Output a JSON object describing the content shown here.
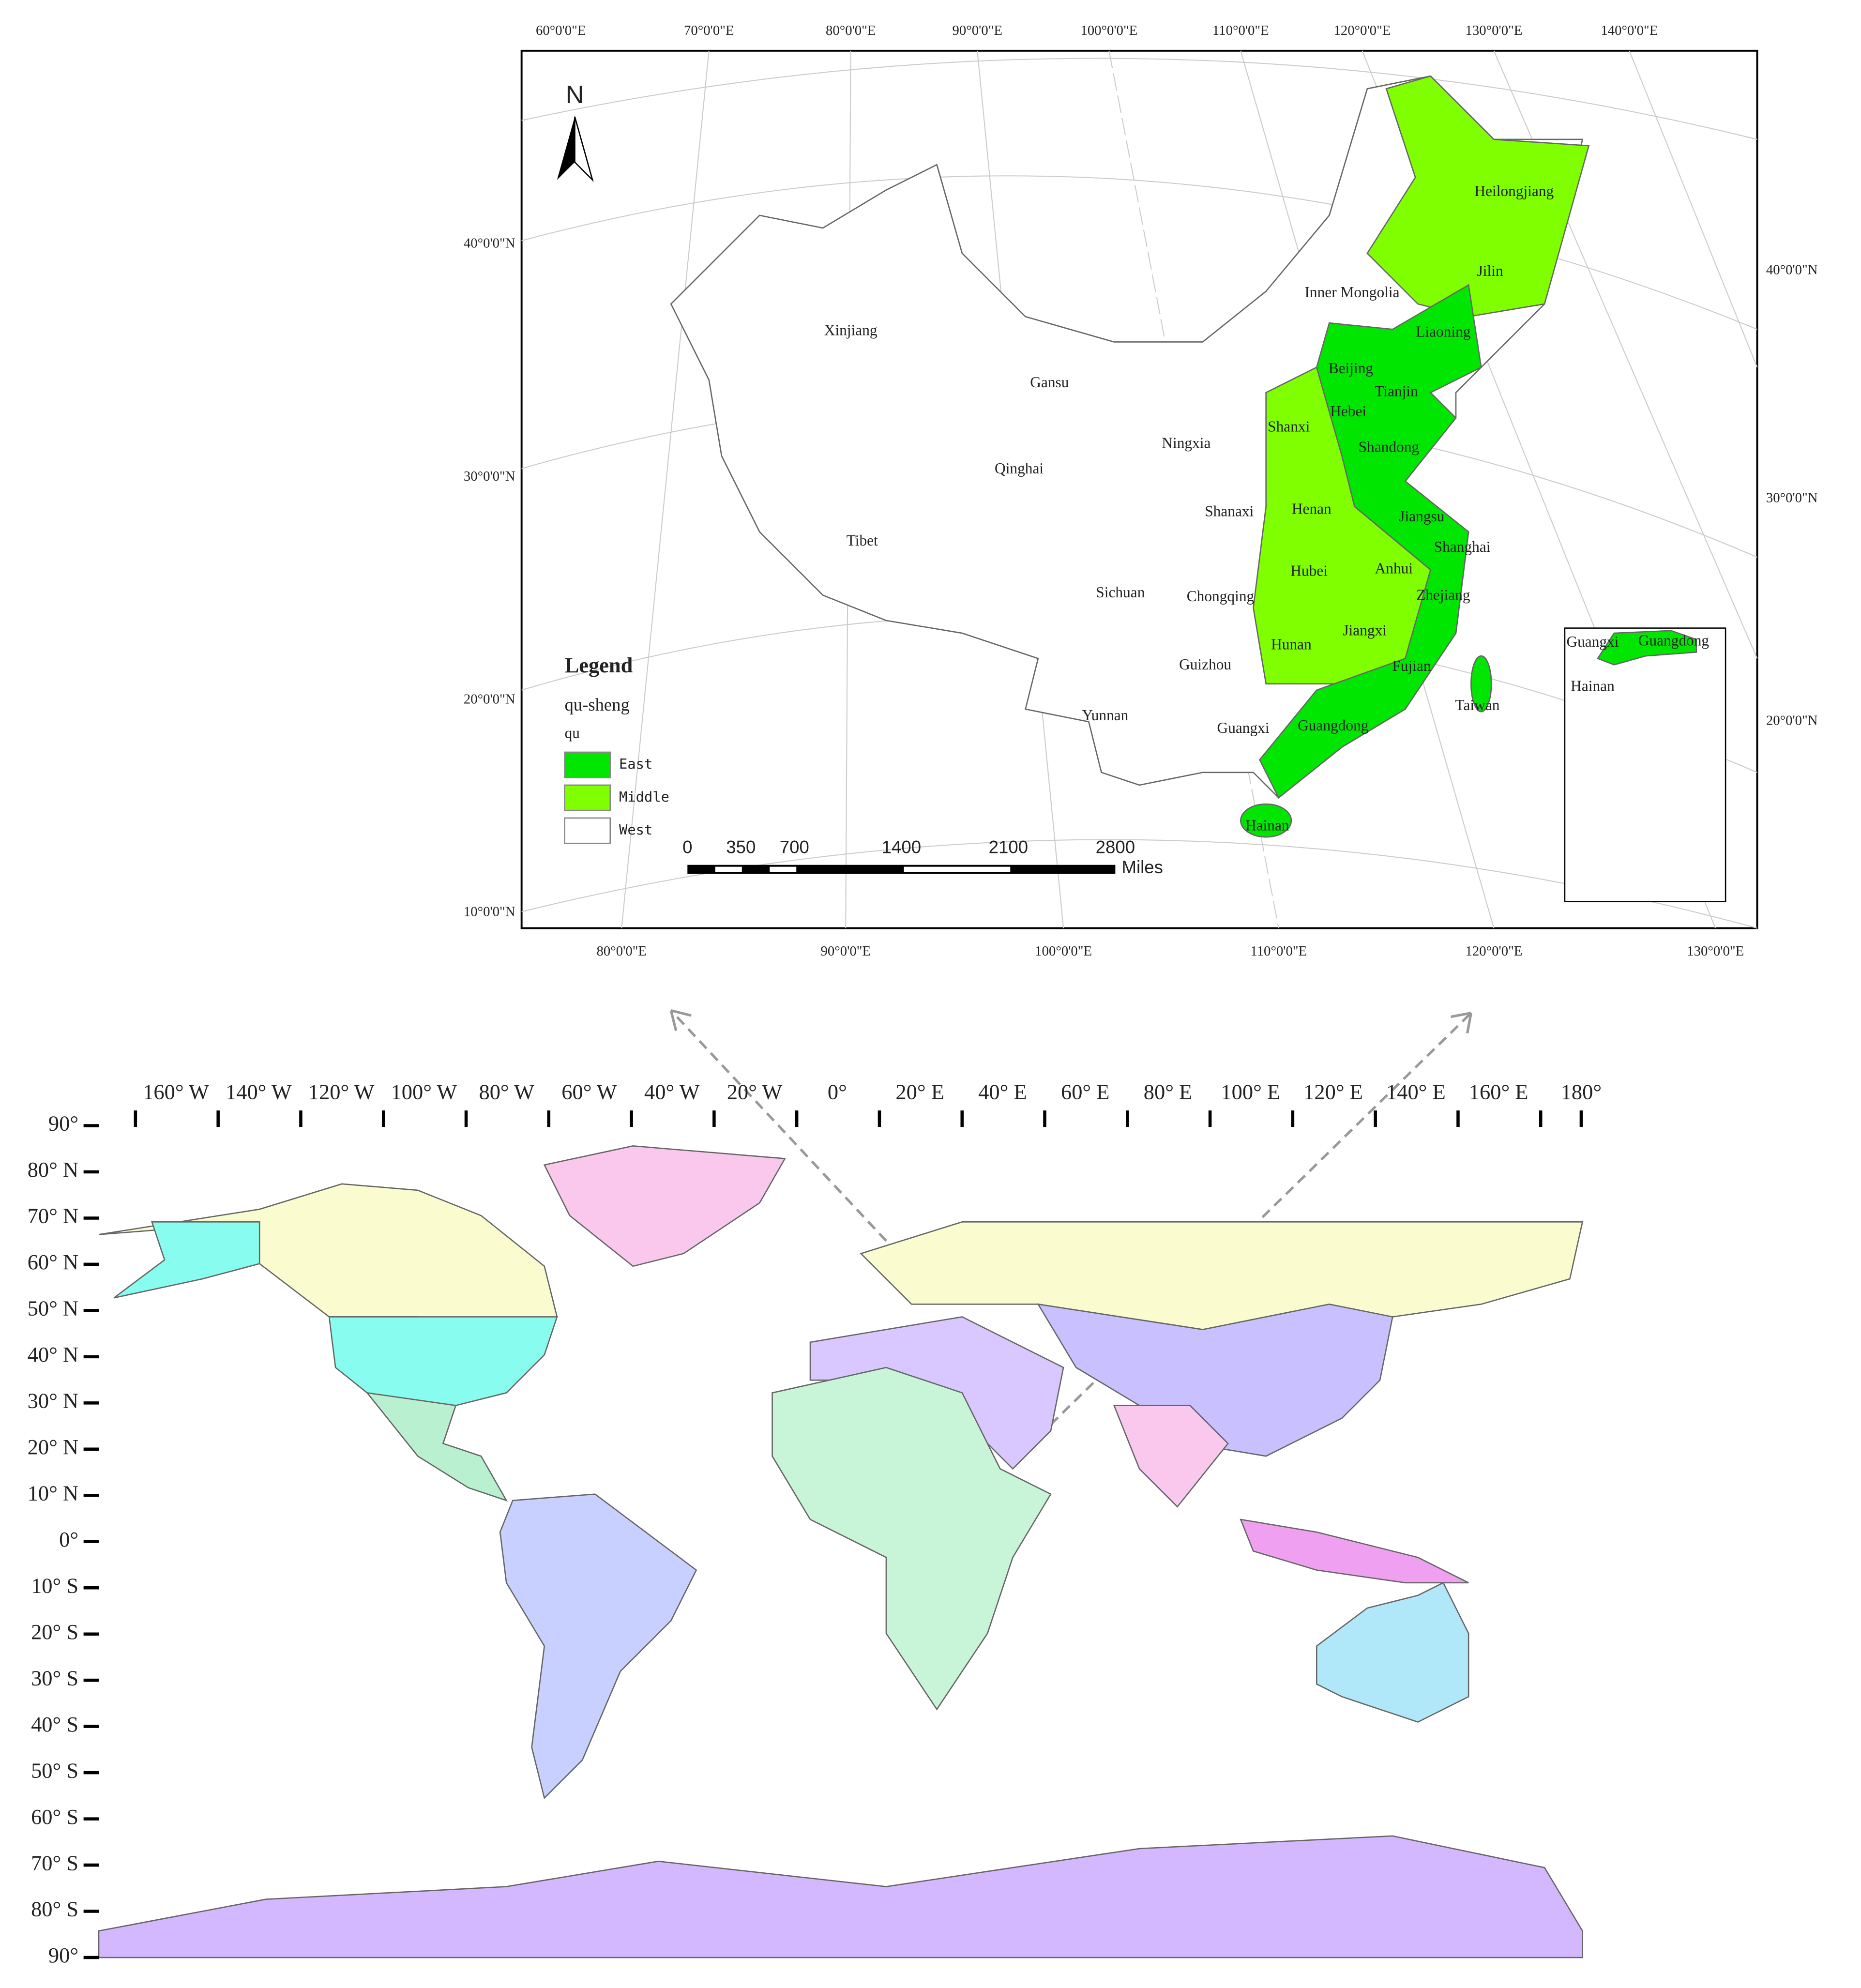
{
  "china_map": {
    "top_lon_labels": [
      "60°0'0\"E",
      "70°0'0\"E",
      "80°0'0\"E",
      "90°0'0\"E",
      "100°0'0\"E",
      "110°0'0\"E",
      "120°0'0\"E",
      "130°0'0\"E",
      "140°0'0\"E"
    ],
    "bottom_lon_labels": [
      "80°0'0\"E",
      "90°0'0\"E",
      "100°0'0\"E",
      "110°0'0\"E",
      "120°0'0\"E",
      "130°0'0\"E"
    ],
    "left_lat_labels": [
      "40°0'0\"N",
      "30°0'0\"N",
      "20°0'0\"N",
      "10°0'0\"N"
    ],
    "right_lat_labels": [
      "40°0'0\"N",
      "30°0'0\"N",
      "20°0'0\"N"
    ],
    "north_arrow": "N",
    "provinces": [
      "Heilongjiang",
      "Jilin",
      "Liaoning",
      "Inner Mongolia",
      "Xinjiang",
      "Gansu",
      "Beijing",
      "Tianjin",
      "Hebei",
      "Shanxi",
      "Shandong",
      "Ningxia",
      "Qinghai",
      "Tibet",
      "Shanaxi",
      "Henan",
      "Jiangsu",
      "Shanghai",
      "Hubei",
      "Anhui",
      "Sichuan",
      "Chongqing",
      "Zhejiang",
      "Jiangxi",
      "Hunan",
      "Guizhou",
      "Fujian",
      "Yunnan",
      "Guangxi",
      "Guangdong",
      "Taiwan",
      "Hainan"
    ],
    "inset_labels": [
      "Guangxi",
      "Guangdong",
      "Hainan"
    ],
    "legend": {
      "title": "Legend",
      "layer": "qu-sheng",
      "field": "qu",
      "entries": [
        {
          "label": "East",
          "color": "#00e600"
        },
        {
          "label": "Middle",
          "color": "#7fff00"
        },
        {
          "label": "West",
          "color": "#ffffff"
        }
      ]
    },
    "scale_bar": {
      "ticks": [
        0,
        350,
        700,
        1400,
        2100,
        2800
      ],
      "unit": "Miles"
    }
  },
  "world_map": {
    "lon_labels": [
      "160° W",
      "140° W",
      "120° W",
      "100° W",
      "80° W",
      "60° W",
      "40° W",
      "20° W",
      "0°",
      "20° E",
      "40° E",
      "60° E",
      "80° E",
      "100° E",
      "120° E",
      "140° E",
      "160° E",
      "180°"
    ],
    "lat_labels": [
      "90°",
      "80° N",
      "70° N",
      "60° N",
      "50° N",
      "40° N",
      "30° N",
      "20° N",
      "10° N",
      "0°",
      "10° S",
      "20° S",
      "30° S",
      "40° S",
      "50° S",
      "60° S",
      "70° S",
      "80° S",
      "90°"
    ]
  }
}
